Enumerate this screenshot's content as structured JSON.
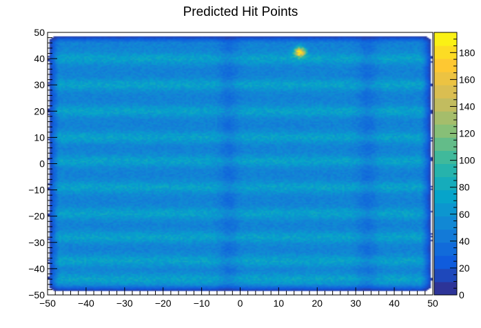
{
  "chart_data": {
    "type": "heatmap",
    "title": "Predicted Hit Points",
    "xlabel": "",
    "ylabel": "",
    "xlim": [
      -50,
      50
    ],
    "ylim": [
      -50,
      50
    ],
    "zlim": [
      0,
      195
    ],
    "x_ticks": [
      -50,
      -40,
      -30,
      -20,
      -10,
      0,
      10,
      20,
      30,
      40,
      50
    ],
    "y_ticks": [
      -50,
      -40,
      -30,
      -20,
      -10,
      0,
      10,
      20,
      30,
      40,
      50
    ],
    "z_ticks": [
      0,
      20,
      40,
      60,
      80,
      100,
      120,
      140,
      160,
      180
    ],
    "x_tick_labels": [
      "−50",
      "−40",
      "−30",
      "−20",
      "−10",
      "0",
      "10",
      "20",
      "30",
      "40",
      "50"
    ],
    "y_tick_labels": [
      "−50",
      "−40",
      "−30",
      "−20",
      "−10",
      "0",
      "10",
      "20",
      "30",
      "40",
      "50"
    ],
    "z_tick_labels": [
      "0",
      "20",
      "40",
      "60",
      "80",
      "100",
      "120",
      "140",
      "160",
      "180"
    ],
    "bins": {
      "nx": 200,
      "ny": 200
    },
    "grid": false,
    "legend": "colorbar-right",
    "palette": [
      "#352a87",
      "#0f5cdd",
      "#1481d6",
      "#06a4ca",
      "#2eb7a4",
      "#87bf77",
      "#d1bb59",
      "#fec832",
      "#f9fb0e"
    ],
    "structure": {
      "baseline_count": 50,
      "edge_falloff_x": [
        -47,
        47
      ],
      "bright_bands_y": [
        -44,
        -37,
        -28,
        -19,
        -9,
        1,
        10,
        20,
        30,
        40
      ],
      "band_peak_count": 72,
      "vertical_gaps_x": [
        -3,
        33
      ],
      "hotspot": {
        "x": 15.5,
        "y": 42.5,
        "peak_count": 190
      }
    }
  }
}
